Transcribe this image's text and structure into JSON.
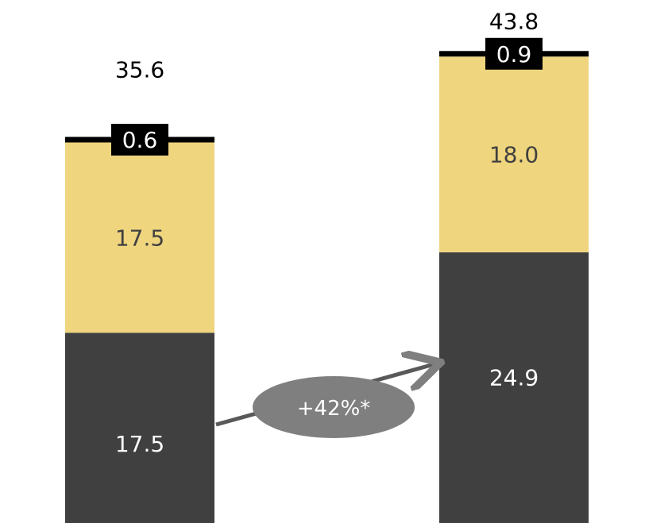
{
  "chart_data": {
    "type": "bar",
    "stacked": true,
    "categories": [
      "",
      ""
    ],
    "series": [
      {
        "values": [
          17.5,
          24.9
        ],
        "color": "#404040",
        "label_color": "#ffffff"
      },
      {
        "values": [
          17.5,
          18.0
        ],
        "color": "#efd57e",
        "label_color": "#404040"
      },
      {
        "values": [
          0.6,
          0.9
        ],
        "color": "#000000",
        "label_color": "#ffffff"
      }
    ],
    "totals": [
      "35.6",
      "43.8"
    ],
    "segment_labels": [
      [
        "17.5",
        "17.5",
        "0.6"
      ],
      [
        "24.9",
        "18.0",
        "0.9"
      ]
    ],
    "annotation": {
      "text": "+42%*",
      "from": 0,
      "to": 1,
      "series": 0,
      "color": "#7f7f7f"
    },
    "legend": "none",
    "grid": false
  }
}
